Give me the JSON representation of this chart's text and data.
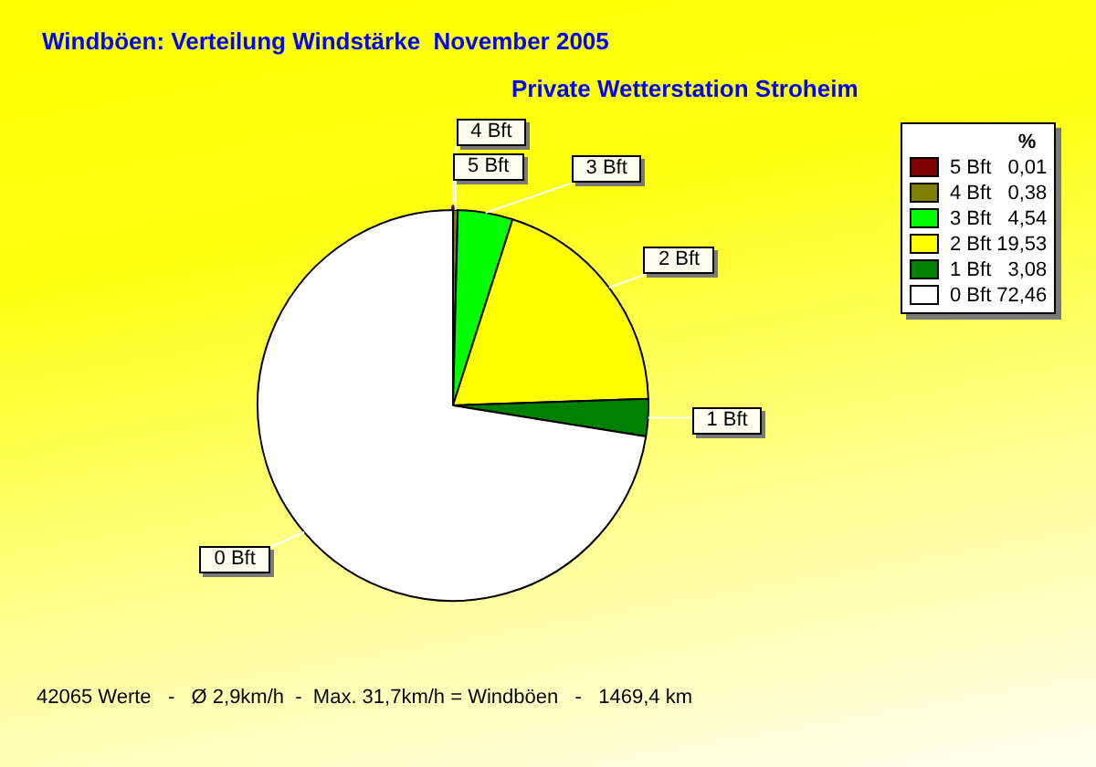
{
  "chart_data": {
    "type": "pie",
    "title": "Windböen: Verteilung Windstärke  November 2005",
    "subtitle": "Private Wetterstation Stroheim",
    "categories": [
      "5 Bft",
      "4 Bft",
      "3 Bft",
      "2 Bft",
      "1 Bft",
      "0 Bft"
    ],
    "values": [
      0.01,
      0.38,
      4.54,
      19.53,
      3.08,
      72.46
    ],
    "value_labels": [
      "0,01",
      "0,38",
      "4,54",
      "19,53",
      "3,08",
      "72,46"
    ],
    "colors": [
      "#800000",
      "#808000",
      "#00ff00",
      "#ffff00",
      "#008000",
      "#ffffff"
    ],
    "legend": "top right",
    "legend_title": "%",
    "annotations": [
      "42065 Werte   -   Ø 2,9km/h  -  Max. 31,7km/h = Windböen   -   1469,4 km"
    ]
  }
}
